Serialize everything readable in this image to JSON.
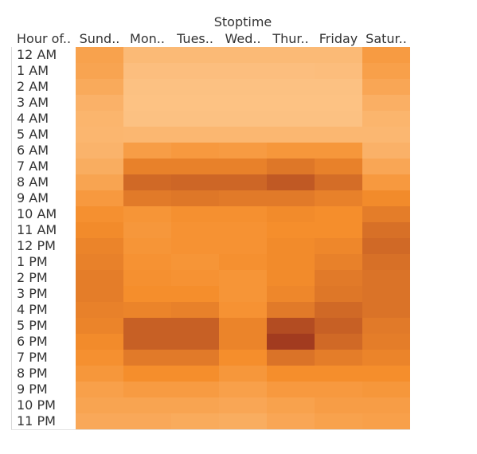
{
  "chart_data": {
    "type": "heatmap",
    "title": "Stoptime",
    "row_header": "Hour of..",
    "columns": [
      "Sund..",
      "Mon..",
      "Tues..",
      "Wed..",
      "Thur..",
      "Friday",
      "Satur.."
    ],
    "rows": [
      "12 AM",
      "1 AM",
      "2 AM",
      "3 AM",
      "4 AM",
      "5 AM",
      "6 AM",
      "7 AM",
      "8 AM",
      "9 AM",
      "10 AM",
      "11 AM",
      "12 PM",
      "1 PM",
      "2 PM",
      "3 PM",
      "4 PM",
      "5 PM",
      "6 PM",
      "7 PM",
      "8 PM",
      "9 PM",
      "10 PM",
      "11 PM"
    ],
    "values": [
      [
        0.32,
        0.1,
        0.1,
        0.1,
        0.1,
        0.1,
        0.38
      ],
      [
        0.3,
        0.06,
        0.06,
        0.06,
        0.06,
        0.07,
        0.34
      ],
      [
        0.25,
        0.04,
        0.04,
        0.04,
        0.04,
        0.04,
        0.28
      ],
      [
        0.18,
        0.03,
        0.03,
        0.03,
        0.03,
        0.03,
        0.2
      ],
      [
        0.15,
        0.04,
        0.04,
        0.04,
        0.04,
        0.04,
        0.15
      ],
      [
        0.14,
        0.13,
        0.13,
        0.13,
        0.13,
        0.13,
        0.13
      ],
      [
        0.16,
        0.36,
        0.4,
        0.38,
        0.42,
        0.42,
        0.18
      ],
      [
        0.22,
        0.58,
        0.58,
        0.58,
        0.64,
        0.58,
        0.28
      ],
      [
        0.3,
        0.72,
        0.74,
        0.74,
        0.82,
        0.7,
        0.4
      ],
      [
        0.4,
        0.62,
        0.64,
        0.62,
        0.62,
        0.58,
        0.52
      ],
      [
        0.48,
        0.44,
        0.48,
        0.48,
        0.52,
        0.5,
        0.6
      ],
      [
        0.52,
        0.42,
        0.46,
        0.46,
        0.5,
        0.5,
        0.68
      ],
      [
        0.56,
        0.44,
        0.46,
        0.46,
        0.52,
        0.54,
        0.72
      ],
      [
        0.58,
        0.46,
        0.44,
        0.48,
        0.52,
        0.58,
        0.68
      ],
      [
        0.6,
        0.48,
        0.46,
        0.44,
        0.52,
        0.62,
        0.66
      ],
      [
        0.6,
        0.5,
        0.5,
        0.44,
        0.54,
        0.64,
        0.66
      ],
      [
        0.58,
        0.56,
        0.58,
        0.46,
        0.62,
        0.72,
        0.66
      ],
      [
        0.56,
        0.78,
        0.78,
        0.56,
        0.9,
        0.78,
        0.62
      ],
      [
        0.52,
        0.78,
        0.78,
        0.56,
        1.0,
        0.72,
        0.6
      ],
      [
        0.48,
        0.62,
        0.62,
        0.5,
        0.66,
        0.6,
        0.56
      ],
      [
        0.42,
        0.5,
        0.5,
        0.42,
        0.5,
        0.5,
        0.5
      ],
      [
        0.34,
        0.38,
        0.38,
        0.34,
        0.4,
        0.4,
        0.42
      ],
      [
        0.3,
        0.3,
        0.3,
        0.28,
        0.32,
        0.36,
        0.36
      ],
      [
        0.26,
        0.26,
        0.24,
        0.22,
        0.28,
        0.32,
        0.34
      ]
    ],
    "color_scale": {
      "low": "#fdc589",
      "mid": "#f58e2c",
      "high": "#a23b1f"
    }
  }
}
